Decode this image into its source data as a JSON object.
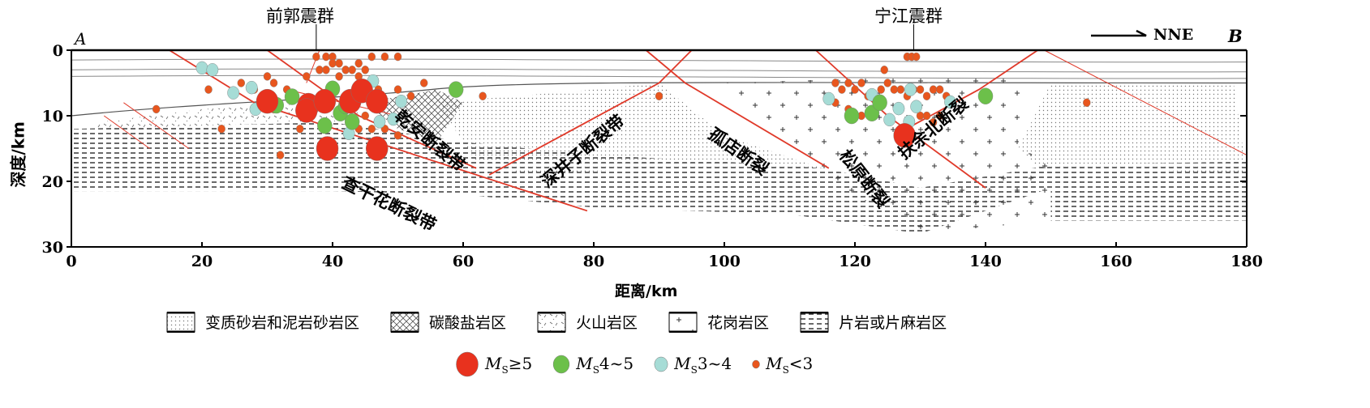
{
  "labels": {
    "cluster_left": "前郭震群",
    "cluster_right": "宁江震群",
    "point_a": "A",
    "point_b": "B",
    "direction": "NNE",
    "ylabel": "深度/km",
    "xlabel": "距离/km",
    "faults": [
      "查干花断裂带",
      "乾安断裂带",
      "深井子断裂带",
      "孤店断裂",
      "松原断裂",
      "扶余北断裂"
    ]
  },
  "axes": {
    "x_ticks": [
      0,
      20,
      40,
      60,
      80,
      100,
      120,
      140,
      160,
      180
    ],
    "y_ticks": [
      0,
      10,
      20,
      30
    ],
    "xlim": [
      0,
      180
    ],
    "ylim": [
      0,
      30
    ]
  },
  "legend_rock": [
    {
      "pattern": "dots",
      "label": "变质砂岩和泥岩砂岩区"
    },
    {
      "pattern": "hatch",
      "label": "碳酸盐岩区"
    },
    {
      "pattern": "volcanic",
      "label": "火山岩区"
    },
    {
      "pattern": "plus",
      "label": "花岗岩区"
    },
    {
      "pattern": "dashes",
      "label": "片岩或片麻岩区"
    }
  ],
  "legend_mag": [
    {
      "cls": "ge5",
      "color": "#e8321e",
      "label_m": "M",
      "label_s": "S",
      "label_rest": "≥5"
    },
    {
      "cls": "4to5",
      "color": "#6cc04a",
      "label_m": "M",
      "label_s": "S",
      "label_rest": "4~5"
    },
    {
      "cls": "3to4",
      "color": "#a6dcd6",
      "label_m": "M",
      "label_s": "S",
      "label_rest": "3~4"
    },
    {
      "cls": "lt3",
      "color": "#e8561e",
      "label_m": "M",
      "label_s": "S",
      "label_rest": "<3"
    }
  ],
  "events": {
    "ge5": [
      [
        30,
        7.8
      ],
      [
        36.3,
        8.4
      ],
      [
        36,
        9.2
      ],
      [
        38.8,
        7.8
      ],
      [
        42.7,
        7.8
      ],
      [
        44.5,
        6.2
      ],
      [
        46.8,
        7.8
      ],
      [
        39.2,
        15
      ],
      [
        46.8,
        15
      ],
      [
        127.6,
        13
      ]
    ],
    "4to5": [
      [
        33.8,
        7.1
      ],
      [
        31.4,
        8.4
      ],
      [
        38.8,
        11.5
      ],
      [
        41.2,
        9.6
      ],
      [
        43,
        10.9
      ],
      [
        40,
        5.9
      ],
      [
        42,
        8.5
      ],
      [
        58.9,
        6
      ],
      [
        119.5,
        10
      ],
      [
        122.6,
        9.6
      ],
      [
        123.8,
        8
      ],
      [
        140,
        7
      ]
    ],
    "3to4": [
      [
        20,
        2.7
      ],
      [
        21.6,
        3
      ],
      [
        24.8,
        6.5
      ],
      [
        27.6,
        5.7
      ],
      [
        28.2,
        9
      ],
      [
        42.5,
        12.7
      ],
      [
        46.2,
        4.7
      ],
      [
        47.2,
        10.9
      ],
      [
        50.5,
        7.8
      ],
      [
        49.3,
        10.5
      ],
      [
        116,
        7.4
      ],
      [
        122.6,
        6.8
      ],
      [
        128.5,
        6
      ],
      [
        129.4,
        8.6
      ],
      [
        126.7,
        8.9
      ],
      [
        128.3,
        10.9
      ],
      [
        128.5,
        13.1
      ],
      [
        134.6,
        7.9
      ],
      [
        125.3,
        10.6
      ]
    ],
    "lt3": [
      [
        13,
        9
      ],
      [
        21,
        6
      ],
      [
        23,
        12
      ],
      [
        26,
        5
      ],
      [
        31,
        5
      ],
      [
        33,
        6
      ],
      [
        35,
        12
      ],
      [
        32,
        16
      ],
      [
        37.5,
        1
      ],
      [
        39,
        1
      ],
      [
        40,
        1
      ],
      [
        40,
        2
      ],
      [
        41,
        2
      ],
      [
        42,
        3
      ],
      [
        43,
        3
      ],
      [
        44,
        2
      ],
      [
        45,
        3
      ],
      [
        46,
        1
      ],
      [
        48,
        1
      ],
      [
        38,
        3
      ],
      [
        39,
        3
      ],
      [
        41,
        4
      ],
      [
        44,
        4
      ],
      [
        47,
        6
      ],
      [
        50,
        6
      ],
      [
        52,
        7
      ],
      [
        54,
        5
      ],
      [
        50,
        1
      ],
      [
        45,
        10
      ],
      [
        46,
        12
      ],
      [
        44,
        12
      ],
      [
        48,
        12
      ],
      [
        50,
        13
      ],
      [
        30,
        4
      ],
      [
        28,
        6
      ],
      [
        31,
        9
      ],
      [
        36,
        4
      ],
      [
        63,
        7
      ],
      [
        90,
        7
      ],
      [
        117,
        5
      ],
      [
        118,
        6
      ],
      [
        119,
        5
      ],
      [
        120,
        6
      ],
      [
        121,
        5
      ],
      [
        122,
        7
      ],
      [
        124,
        6
      ],
      [
        125,
        5
      ],
      [
        126,
        6
      ],
      [
        127,
        6
      ],
      [
        128,
        7
      ],
      [
        129,
        6
      ],
      [
        130,
        6
      ],
      [
        131,
        7
      ],
      [
        132,
        6
      ],
      [
        133,
        6
      ],
      [
        134,
        7
      ],
      [
        117,
        8
      ],
      [
        119,
        9
      ],
      [
        121,
        10
      ],
      [
        130,
        10
      ],
      [
        131,
        10
      ],
      [
        132,
        11
      ],
      [
        133,
        10
      ],
      [
        128,
        1
      ],
      [
        128.7,
        1
      ],
      [
        129.4,
        1
      ],
      [
        124.5,
        3
      ],
      [
        155.5,
        8
      ]
    ]
  },
  "colors": {
    "fault": "#e03a2a",
    "axis": "#000000",
    "layer": "#888888"
  }
}
